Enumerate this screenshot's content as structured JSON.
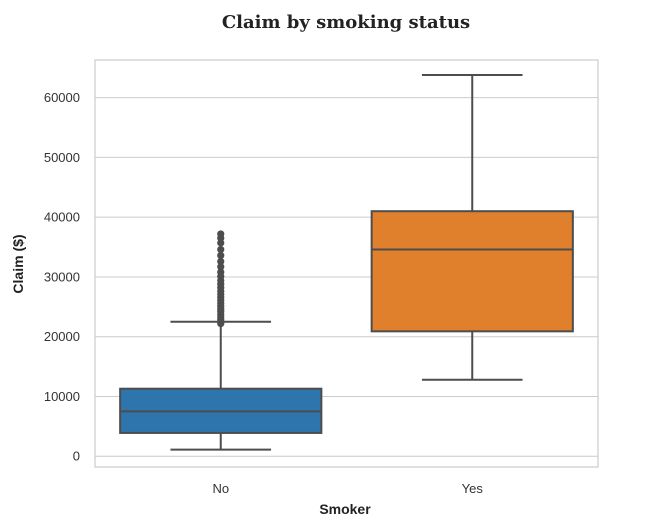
{
  "chart_data": {
    "type": "box",
    "title": "Claim by smoking status",
    "xlabel": "Smoker",
    "ylabel": "Claim ($)",
    "categories": [
      "No",
      "Yes"
    ],
    "ylim": [
      -1800,
      66300
    ],
    "yticks": [
      0,
      10000,
      20000,
      30000,
      40000,
      50000,
      60000
    ],
    "grid": true,
    "boxes": [
      {
        "name": "No",
        "color": "#2e75ad",
        "whisker_low": 1100,
        "q1": 3900,
        "median": 7500,
        "q3": 11300,
        "whisker_high": 22500,
        "outliers": [
          22200,
          22500,
          22900,
          23300,
          23700,
          24200,
          24600,
          25100,
          25600,
          26100,
          26600,
          27100,
          27600,
          28200,
          28800,
          29400,
          30100,
          30800,
          31700,
          32600,
          33600,
          34600,
          35700,
          36500,
          37200
        ]
      },
      {
        "name": "Yes",
        "color": "#e07f2c",
        "whisker_low": 12800,
        "q1": 20900,
        "median": 34600,
        "q3": 41000,
        "whisker_high": 63800,
        "outliers": []
      }
    ]
  }
}
